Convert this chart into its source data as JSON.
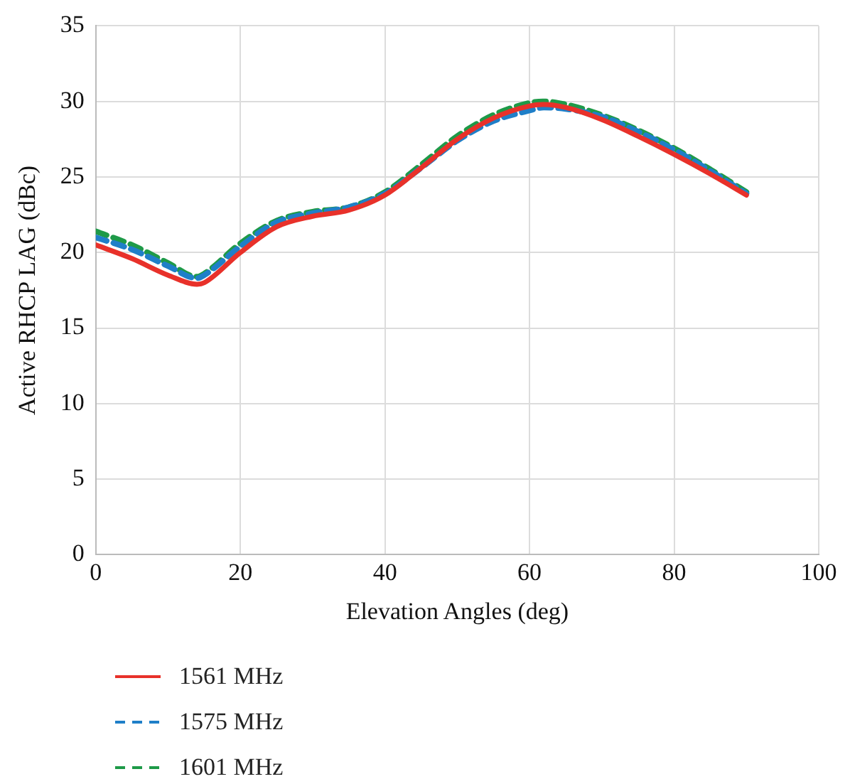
{
  "chart_data": {
    "type": "line",
    "xlabel": "Elevation Angles (deg)",
    "ylabel": "Active RHCP LAG (dBc)",
    "xlim": [
      0,
      100
    ],
    "xticks": [
      0,
      20,
      40,
      60,
      80,
      100
    ],
    "ylim": [
      0,
      35
    ],
    "yticks": [
      0,
      5,
      10,
      15,
      20,
      25,
      30,
      35
    ],
    "grid": true,
    "legend": "bottom left",
    "marker": "none",
    "series": [
      {
        "name": "1561 MHz",
        "color": "#e8312a",
        "line_style": "solid",
        "x": [
          0,
          5,
          10,
          14,
          15,
          20,
          25,
          30,
          35,
          40,
          45,
          50,
          55,
          60,
          62,
          65,
          70,
          75,
          80,
          85,
          90
        ],
        "values": [
          20.5,
          19.6,
          18.5,
          17.9,
          18.0,
          20.0,
          21.7,
          22.4,
          22.8,
          23.8,
          25.6,
          27.5,
          28.9,
          29.7,
          29.8,
          29.6,
          28.8,
          27.7,
          26.5,
          25.2,
          23.8
        ]
      },
      {
        "name": "1575 MHz",
        "color": "#1f7fc8",
        "line_style": "dashed",
        "x": [
          0,
          5,
          10,
          14,
          15,
          20,
          25,
          30,
          35,
          40,
          45,
          50,
          55,
          60,
          62,
          65,
          70,
          75,
          80,
          85,
          90
        ],
        "values": [
          21.0,
          20.2,
          19.1,
          18.3,
          18.5,
          20.4,
          22.0,
          22.6,
          23.0,
          23.9,
          25.6,
          27.4,
          28.7,
          29.4,
          29.6,
          29.5,
          29.0,
          28.0,
          26.8,
          25.4,
          23.9
        ]
      },
      {
        "name": "1601 MHz",
        "color": "#1e9a48",
        "line_style": "dashed",
        "x": [
          0,
          5,
          10,
          14,
          15,
          20,
          25,
          30,
          35,
          40,
          45,
          50,
          55,
          60,
          62,
          65,
          70,
          75,
          80,
          85,
          90
        ],
        "values": [
          21.4,
          20.5,
          19.3,
          18.4,
          18.6,
          20.6,
          22.1,
          22.7,
          23.0,
          24.0,
          25.8,
          27.7,
          29.1,
          29.9,
          30.0,
          29.8,
          29.1,
          28.1,
          26.9,
          25.5,
          24.0
        ]
      }
    ]
  }
}
